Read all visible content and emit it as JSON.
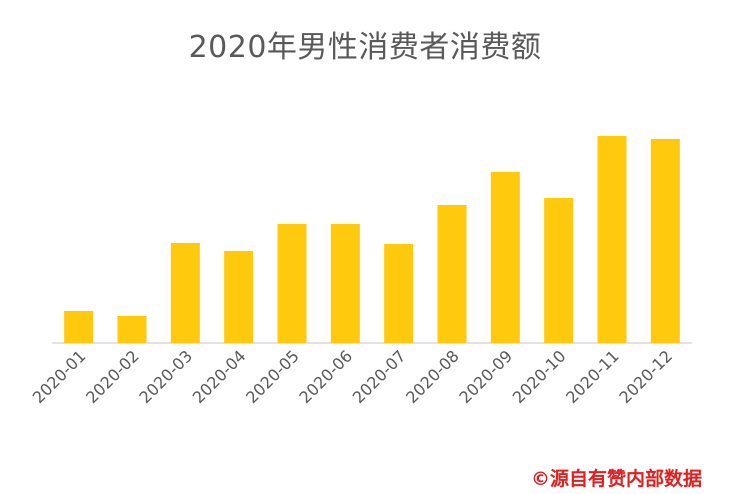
{
  "chart_data": {
    "type": "bar",
    "title": "2020年男性消费者消费额",
    "categories": [
      "2020-01",
      "2020-02",
      "2020-03",
      "2020-04",
      "2020-05",
      "2020-06",
      "2020-07",
      "2020-08",
      "2020-09",
      "2020-10",
      "2020-11",
      "2020-12"
    ],
    "values": [
      32,
      27,
      100,
      92,
      119,
      119,
      99,
      138,
      171,
      145,
      207,
      204
    ],
    "ylim": [
      0,
      220
    ],
    "grid": false,
    "legend": "none",
    "bar_color": "#FFC90E",
    "axis_color": "#D9D9D9",
    "tick_label_color": "#595959"
  },
  "source": {
    "text": "©源自有赞内部数据",
    "color": "#E02020"
  }
}
